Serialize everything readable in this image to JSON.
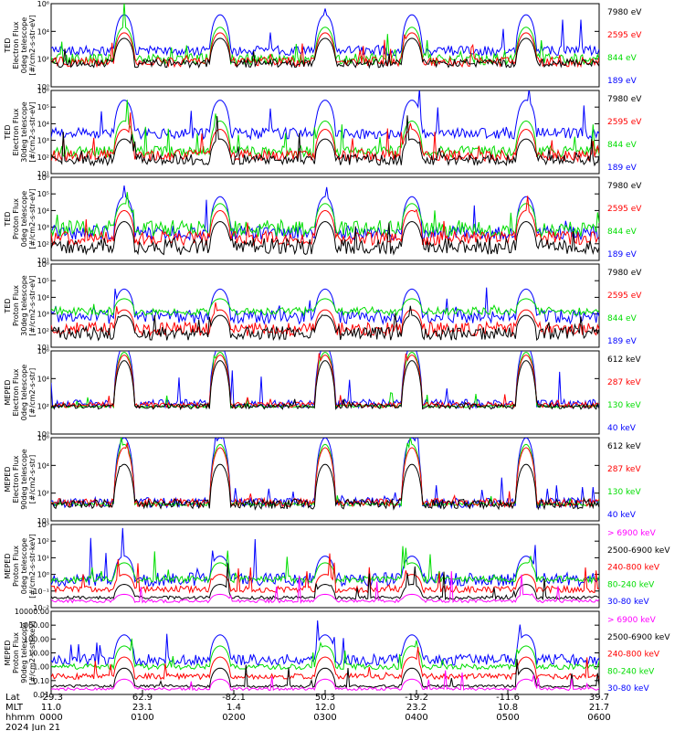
{
  "colors": {
    "blue": "#0000ff",
    "red": "#ff0000",
    "green": "#00dd00",
    "black": "#000000",
    "magenta": "#ff00ff"
  },
  "chart_data": [
    {
      "type": "line",
      "ylabel": [
        "TED",
        "Electron Flux",
        "0deg telescope",
        "[#/cm2-s-str-eV]"
      ],
      "ylim": [
        1,
        1000000
      ],
      "yscale": "log",
      "yticks": [
        "10⁶",
        "10⁴",
        "10²",
        "10⁰"
      ],
      "series": [
        {
          "name": "7980 eV",
          "color": "black",
          "base": 1.7,
          "storm": 1.8,
          "noise": 0.3,
          "spikes": 3.5
        },
        {
          "name": "2595 eV",
          "color": "red",
          "base": 1.8,
          "storm": 2.1,
          "noise": 0.35,
          "spikes": 3.7
        },
        {
          "name": "844 eV",
          "color": "green",
          "base": 2.0,
          "storm": 2.3,
          "noise": 0.4,
          "spikes": 4.0
        },
        {
          "name": "189 eV",
          "color": "blue",
          "base": 2.6,
          "storm": 2.6,
          "noise": 0.35,
          "spikes": 5.0
        }
      ]
    },
    {
      "type": "line",
      "ylabel": [
        "TED",
        "Electron Flux",
        "30deg telescope",
        "[#/cm2-s-str-eV]"
      ],
      "ylim": [
        1,
        1000000
      ],
      "yscale": "log",
      "yticks": [
        "10⁶",
        "10⁵",
        "10⁴",
        "10³",
        "10²",
        "10¹"
      ],
      "series": [
        {
          "name": "7980 eV",
          "color": "black",
          "base": 1.0,
          "storm": 1.5,
          "noise": 0.4,
          "spikes": 3.0
        },
        {
          "name": "2595 eV",
          "color": "red",
          "base": 1.3,
          "storm": 1.9,
          "noise": 0.4,
          "spikes": 3.3
        },
        {
          "name": "844 eV",
          "color": "green",
          "base": 1.6,
          "storm": 2.2,
          "noise": 0.4,
          "spikes": 3.8
        },
        {
          "name": "189 eV",
          "color": "blue",
          "base": 2.9,
          "storm": 2.4,
          "noise": 0.4,
          "spikes": 5.2
        }
      ]
    },
    {
      "type": "line",
      "ylabel": [
        "TED",
        "Proton Flux",
        "0deg telescope",
        "[#/cm2-s-str-eV]"
      ],
      "ylim": [
        1,
        1000000
      ],
      "yscale": "log",
      "yticks": [
        "10⁶",
        "10⁵",
        "10⁴",
        "10³",
        "10²",
        "10¹"
      ],
      "series": [
        {
          "name": "7980 eV",
          "color": "black",
          "base": 1.0,
          "storm": 1.8,
          "noise": 0.6,
          "spikes": 2.5
        },
        {
          "name": "2595 eV",
          "color": "red",
          "base": 1.6,
          "storm": 2.0,
          "noise": 0.5,
          "spikes": 2.8
        },
        {
          "name": "844 eV",
          "color": "green",
          "base": 2.3,
          "storm": 1.8,
          "noise": 0.6,
          "spikes": 3.4
        },
        {
          "name": "189 eV",
          "color": "blue",
          "base": 2.0,
          "storm": 2.6,
          "noise": 0.5,
          "spikes": 4.8
        }
      ]
    },
    {
      "type": "line",
      "ylabel": [
        "TED",
        "Proton Flux",
        "30deg telescope",
        "[#/cm2-s-str-eV]"
      ],
      "ylim": [
        1,
        1000000
      ],
      "yscale": "log",
      "yticks": [
        "10⁶",
        "10⁵",
        "10⁴",
        "10³",
        "10²",
        "10¹"
      ],
      "series": [
        {
          "name": "7980 eV",
          "color": "black",
          "base": 1.0,
          "storm": 1.3,
          "noise": 0.5,
          "spikes": 2.3
        },
        {
          "name": "2595 eV",
          "color": "red",
          "base": 1.3,
          "storm": 1.4,
          "noise": 0.5,
          "spikes": 2.5
        },
        {
          "name": "844 eV",
          "color": "green",
          "base": 2.6,
          "storm": 0.9,
          "noise": 0.3,
          "spikes": 3.2
        },
        {
          "name": "189 eV",
          "color": "blue",
          "base": 2.2,
          "storm": 2.0,
          "noise": 0.5,
          "spikes": 4.3
        }
      ]
    },
    {
      "type": "line",
      "ylabel": [
        "MEPED",
        "Electron Flux",
        "0deg telescope",
        "[#/cm2-s-str]"
      ],
      "ylim": [
        1,
        1000000
      ],
      "yscale": "log",
      "yticks": [
        "10⁶",
        "10⁴",
        "10²",
        "10⁰"
      ],
      "series": [
        {
          "name": "612 keV",
          "color": "black",
          "base": 2.0,
          "storm": 3.3,
          "noise": 0.2,
          "spikes": 2.6
        },
        {
          "name": "287 keV",
          "color": "red",
          "base": 2.1,
          "storm": 3.6,
          "noise": 0.2,
          "spikes": 3.0
        },
        {
          "name": "130 keV",
          "color": "green",
          "base": 2.0,
          "storm": 3.9,
          "noise": 0.1,
          "spikes": 3.1
        },
        {
          "name": "40 keV",
          "color": "blue",
          "base": 2.2,
          "storm": 4.2,
          "noise": 0.3,
          "spikes": 4.5
        }
      ]
    },
    {
      "type": "line",
      "ylabel": [
        "MEPED",
        "Electron Flux",
        "90deg telescope",
        "[#/cm2-s-str]"
      ],
      "ylim": [
        10,
        1000000
      ],
      "yscale": "log",
      "yticks": [
        "10⁶",
        "10⁴",
        "10²",
        "10¹"
      ],
      "series": [
        {
          "name": "612 keV",
          "color": "black",
          "base": 2.0,
          "storm": 2.4,
          "noise": 0.3,
          "spikes": 2.2
        },
        {
          "name": "287 keV",
          "color": "red",
          "base": 2.1,
          "storm": 3.3,
          "noise": 0.25,
          "spikes": 2.6
        },
        {
          "name": "130 keV",
          "color": "green",
          "base": 2.0,
          "storm": 3.6,
          "noise": 0.1,
          "spikes": 3.0
        },
        {
          "name": "40 keV",
          "color": "blue",
          "base": 2.1,
          "storm": 3.9,
          "noise": 0.3,
          "spikes": 3.6
        }
      ]
    },
    {
      "type": "line",
      "ylabel": [
        "MEPED",
        "Proton Flux",
        "0deg telescope",
        "[#/cm2-s-str-keV]"
      ],
      "ylim": [
        0.01,
        1000
      ],
      "yscale": "log",
      "yticks": [
        "10³",
        "10²",
        "10¹",
        "10⁰",
        "10⁻¹",
        "10⁻²"
      ],
      "series": [
        {
          "name": "> 6900 keV",
          "color": "magenta",
          "base": -1.6,
          "storm": 0.4,
          "noise": 0.1,
          "spikes": 0.2
        },
        {
          "name": "2500-6900 keV",
          "color": "black",
          "base": -1.4,
          "storm": 0.8,
          "noise": 0.1,
          "spikes": 0.3
        },
        {
          "name": "240-800 keV",
          "color": "red",
          "base": -0.9,
          "storm": 0.9,
          "noise": 0.2,
          "spikes": 0.8
        },
        {
          "name": "80-240 keV",
          "color": "green",
          "base": -0.3,
          "storm": 1.0,
          "noise": 0.2,
          "spikes": 1.3
        },
        {
          "name": "30-80 keV",
          "color": "blue",
          "base": -0.3,
          "storm": 1.4,
          "noise": 0.4,
          "spikes": 2.4
        }
      ]
    },
    {
      "type": "line",
      "ylabel": [
        "MEPED",
        "Proton Flux",
        "90deg telescope",
        "[#/cm2-s-str-keV]"
      ],
      "ylim": [
        0.01,
        10000
      ],
      "yscale": "log",
      "yticks": [
        "10000.00",
        "1000.00",
        "100.00",
        "10.00",
        "1.00",
        "0.10",
        "0.01"
      ],
      "series": [
        {
          "name": "> 6900 keV",
          "color": "magenta",
          "base": -1.6,
          "storm": 0.7,
          "noise": 0.1,
          "spikes": 0.2
        },
        {
          "name": "2500-6900 keV",
          "color": "black",
          "base": -1.4,
          "storm": 1.3,
          "noise": 0.1,
          "spikes": 0.3
        },
        {
          "name": "240-800 keV",
          "color": "red",
          "base": -0.7,
          "storm": 1.4,
          "noise": 0.2,
          "spikes": 0.8
        },
        {
          "name": "80-240 keV",
          "color": "green",
          "base": 0.0,
          "storm": 1.5,
          "noise": 0.2,
          "spikes": 1.2
        },
        {
          "name": "30-80 keV",
          "color": "blue",
          "base": 0.5,
          "storm": 1.8,
          "noise": 0.4,
          "spikes": 2.4
        }
      ]
    }
  ],
  "x_axis": {
    "row_labels": [
      "Lat",
      "MLT",
      "hhmm"
    ],
    "ticks": [
      {
        "lat": "-29.3",
        "mlt": "11.0",
        "hhmm": "0000"
      },
      {
        "lat": "62.9",
        "mlt": "23.1",
        "hhmm": "0100"
      },
      {
        "lat": "-82.1",
        "mlt": "1.4",
        "hhmm": "0200"
      },
      {
        "lat": "50.3",
        "mlt": "12.0",
        "hhmm": "0300"
      },
      {
        "lat": "-19.2",
        "mlt": "23.2",
        "hhmm": "0400"
      },
      {
        "lat": "-11.6",
        "mlt": "10.8",
        "hhmm": "0500"
      },
      {
        "lat": "39.7",
        "mlt": "21.7",
        "hhmm": "0600"
      }
    ],
    "date": "2024 Jun 21"
  },
  "storm_centers_hours": [
    0.8,
    1.85,
    3.0,
    3.95,
    5.2
  ],
  "time_range_hours": [
    0,
    6
  ]
}
